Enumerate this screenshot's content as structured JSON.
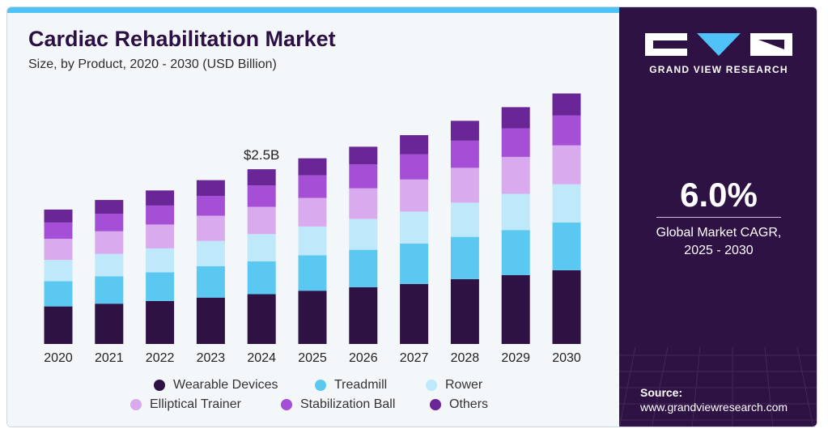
{
  "header": {
    "title": "Cardiac Rehabilitation Market",
    "subtitle": "Size, by Product, 2020 - 2030 (USD Billion)"
  },
  "colors": {
    "accent_bar": "#4fc3f7",
    "panel_bg": "#2e1244",
    "title": "#2b1143"
  },
  "chart_data": {
    "type": "bar",
    "stacked": true,
    "categories": [
      "2020",
      "2021",
      "2022",
      "2023",
      "2024",
      "2025",
      "2026",
      "2027",
      "2028",
      "2029",
      "2030"
    ],
    "series": [
      {
        "name": "Wearable Devices",
        "color": "#2e1244",
        "values": [
          0.55,
          0.59,
          0.63,
          0.68,
          0.73,
          0.78,
          0.83,
          0.88,
          0.95,
          1.01,
          1.08
        ]
      },
      {
        "name": "Treadmill",
        "color": "#5bc8f2",
        "values": [
          0.37,
          0.4,
          0.42,
          0.46,
          0.48,
          0.52,
          0.55,
          0.59,
          0.62,
          0.66,
          0.7
        ]
      },
      {
        "name": "Rower",
        "color": "#bfe8fb",
        "values": [
          0.31,
          0.33,
          0.35,
          0.37,
          0.4,
          0.42,
          0.45,
          0.47,
          0.5,
          0.53,
          0.56
        ]
      },
      {
        "name": "Elliptical Trainer",
        "color": "#d9aaee",
        "values": [
          0.31,
          0.33,
          0.35,
          0.37,
          0.4,
          0.42,
          0.45,
          0.47,
          0.51,
          0.54,
          0.57
        ]
      },
      {
        "name": "Stabilization Ball",
        "color": "#a44fd6",
        "values": [
          0.24,
          0.26,
          0.28,
          0.29,
          0.31,
          0.33,
          0.35,
          0.37,
          0.4,
          0.42,
          0.44
        ]
      },
      {
        "name": "Others",
        "color": "#6a2596",
        "values": [
          0.19,
          0.2,
          0.22,
          0.23,
          0.24,
          0.25,
          0.26,
          0.28,
          0.29,
          0.31,
          0.32
        ]
      }
    ],
    "annotations": [
      {
        "category": "2024",
        "text": "$2.5B"
      }
    ],
    "ylim": [
      0,
      3.7
    ],
    "grid": false,
    "legend": "bottom"
  },
  "side_panel": {
    "brand": "GRAND VIEW RESEARCH",
    "cagr_value": "6.0%",
    "cagr_label_line1": "Global Market CAGR,",
    "cagr_label_line2": "2025 - 2030",
    "source_label": "Source:",
    "source_url": "www.grandviewresearch.com"
  }
}
